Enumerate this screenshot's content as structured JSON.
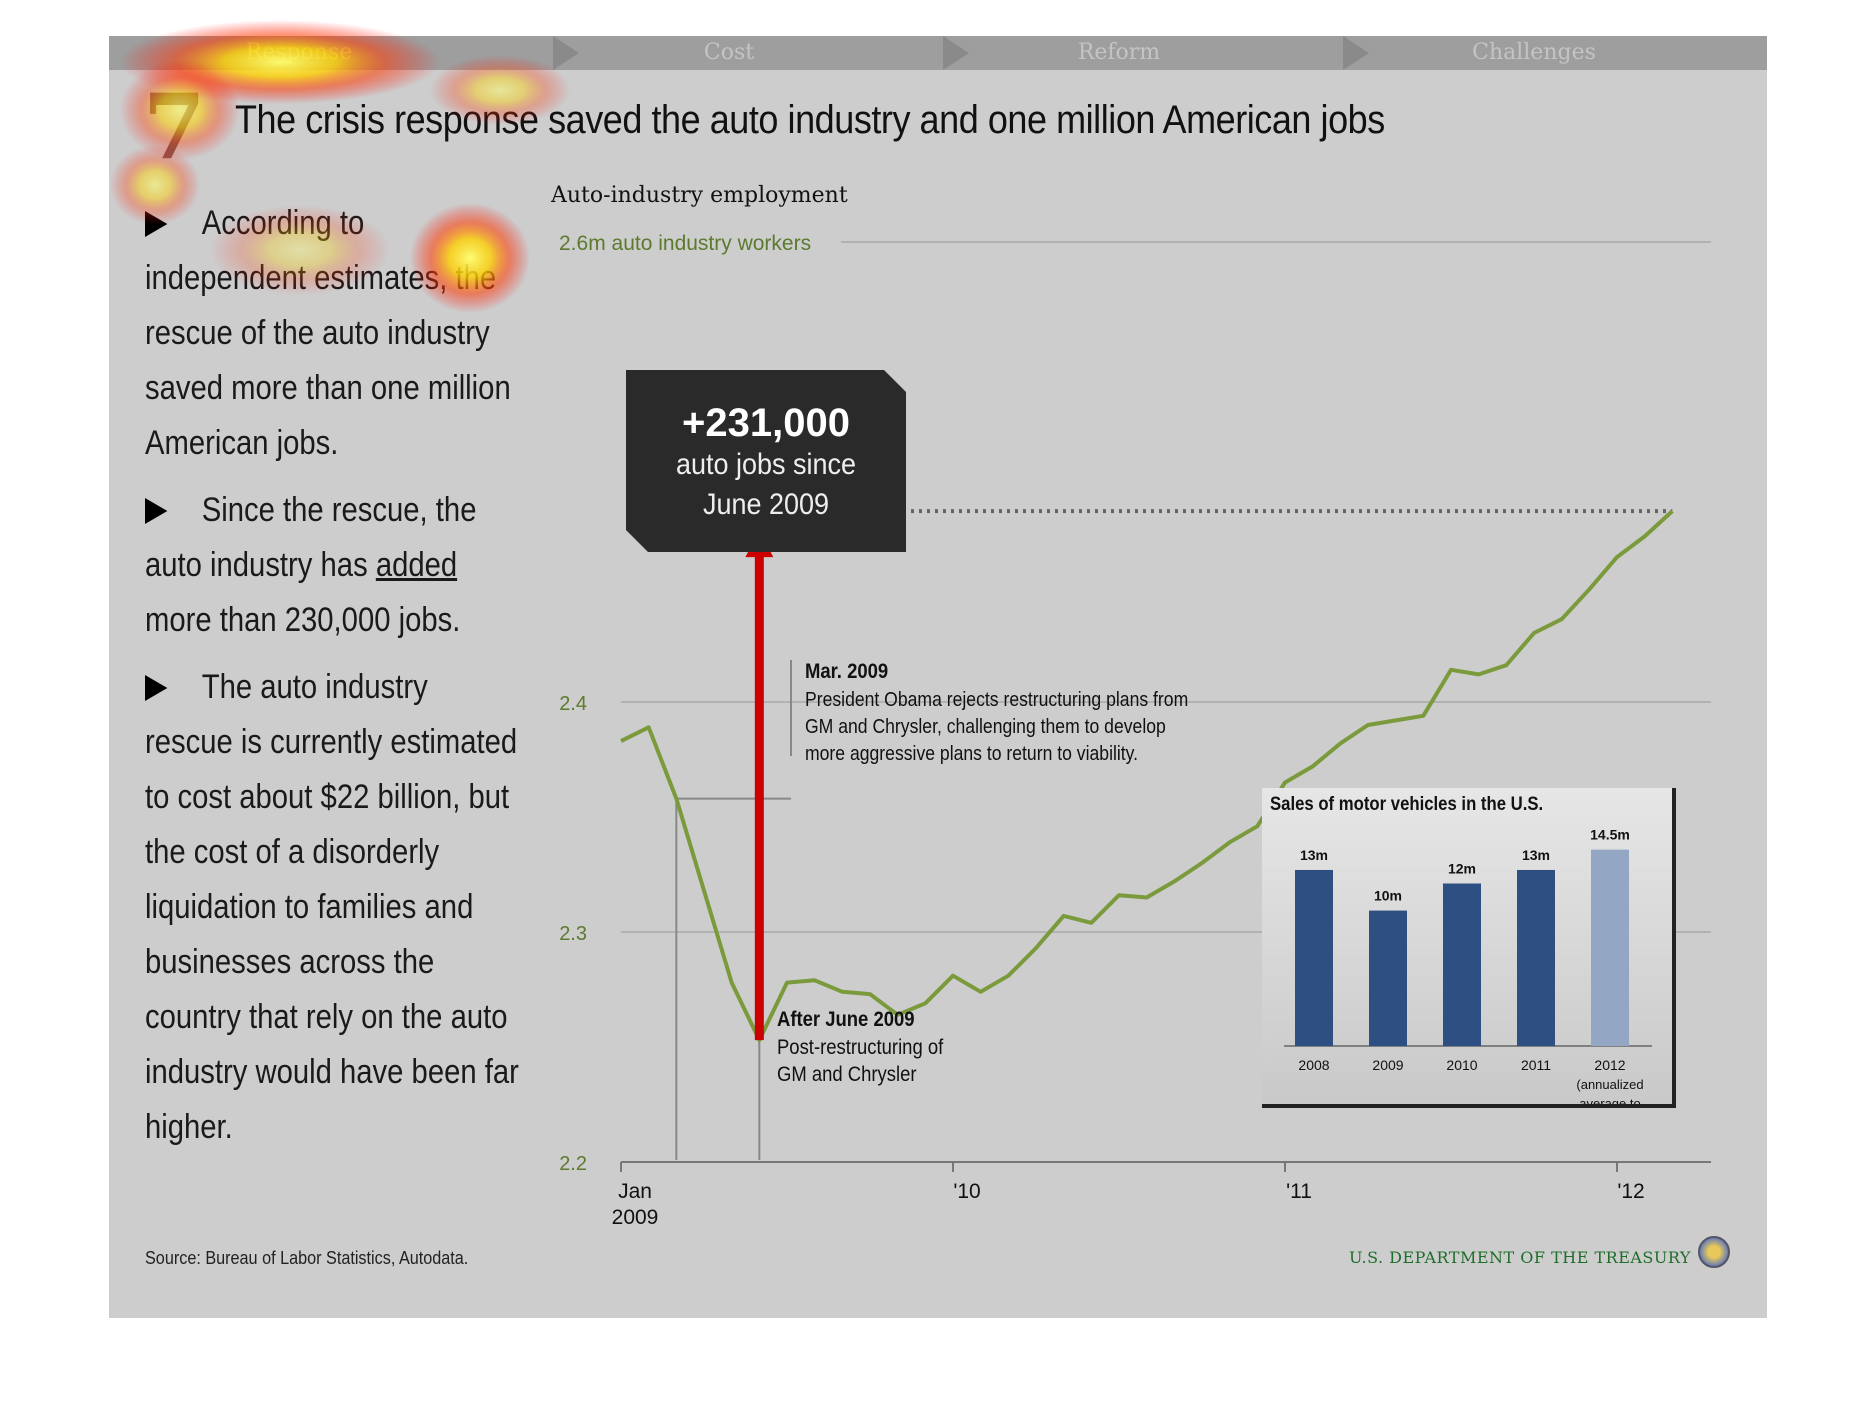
{
  "nav": {
    "tabs": [
      {
        "label": "Response",
        "active": true
      },
      {
        "label": "Cost",
        "active": false
      },
      {
        "label": "Reform",
        "active": false
      },
      {
        "label": "Challenges",
        "active": false
      }
    ]
  },
  "slide_number": "7",
  "headline": "The crisis response saved the auto industry and one million American jobs",
  "bullets": {
    "b1": "According to independent estimates, the rescue of the auto industry saved more than one million American jobs.",
    "b2_pre": "Since the rescue, the auto industry has ",
    "b2_under": "added",
    "b2_post": " more than 230,000 jobs.",
    "b3": "The auto industry rescue is currently estimated to cost about $22 billion, but the cost of a disorderly liquidation to families and businesses across the country that rely on the auto industry would have been far higher."
  },
  "source": "Source: Bureau of Labor Statistics, Autodata.",
  "footer_org": "U.S. DEPARTMENT OF THE TREASURY",
  "colors": {
    "line": "#7a9a3c",
    "arrow": "#cc0000",
    "callout": "#2a2a2a",
    "bar": "#2e4f82",
    "bar_2012": "#93a6c4",
    "axis_label": "#5c7a2e"
  },
  "chart_data": [
    {
      "type": "line",
      "title": "Auto-industry employment",
      "reference_line_label": "2.6m auto industry workers",
      "ylim": [
        2.2,
        2.6
      ],
      "yticks": [
        2.2,
        2.3,
        2.4
      ],
      "x_tick_labels": [
        {
          "value": "2009-01",
          "line1": "Jan",
          "line2": "2009"
        },
        {
          "value": "2010-01",
          "line1": "'10",
          "line2": ""
        },
        {
          "value": "2011-01",
          "line1": "'11",
          "line2": ""
        },
        {
          "value": "2012-01",
          "line1": "'12",
          "line2": ""
        }
      ],
      "x": [
        "2009-01",
        "2009-02",
        "2009-03",
        "2009-04",
        "2009-05",
        "2009-06",
        "2009-07",
        "2009-08",
        "2009-09",
        "2009-10",
        "2009-11",
        "2009-12",
        "2010-01",
        "2010-02",
        "2010-03",
        "2010-04",
        "2010-05",
        "2010-06",
        "2010-07",
        "2010-08",
        "2010-09",
        "2010-10",
        "2010-11",
        "2010-12",
        "2011-01",
        "2011-02",
        "2011-03",
        "2011-04",
        "2011-05",
        "2011-06",
        "2011-07",
        "2011-08",
        "2011-09",
        "2011-10",
        "2011-11",
        "2011-12",
        "2012-01",
        "2012-02",
        "2012-03"
      ],
      "values": [
        2.383,
        2.389,
        2.358,
        2.318,
        2.278,
        2.253,
        2.278,
        2.279,
        2.274,
        2.273,
        2.264,
        2.269,
        2.281,
        2.274,
        2.281,
        2.293,
        2.307,
        2.304,
        2.316,
        2.315,
        2.322,
        2.33,
        2.339,
        2.346,
        2.365,
        2.372,
        2.382,
        2.39,
        2.392,
        2.394,
        2.414,
        2.412,
        2.416,
        2.43,
        2.436,
        2.449,
        2.463,
        2.472,
        2.483
      ],
      "annotations": {
        "callout_big": "+231,000",
        "callout_line1": "auto jobs since",
        "callout_line2": "June 2009",
        "mar_title": "Mar. 2009",
        "mar_line1": "President Obama rejects restructuring plans from",
        "mar_line2": "GM and Chrysler, challenging them to develop",
        "mar_line3": "more aggressive plans to return to viability.",
        "june_title": "After June 2009",
        "june_line1": "Post-restructuring of",
        "june_line2": "GM and Chrysler"
      }
    },
    {
      "type": "bar",
      "title": "Sales of motor vehicles in the U.S.",
      "categories": [
        "2008",
        "2009",
        "2010",
        "2011",
        "2012"
      ],
      "category_sublabels": [
        "",
        "",
        "",
        "",
        "(annualized|average to|date)"
      ],
      "values": [
        13,
        10,
        12,
        13,
        14.5
      ],
      "value_labels": [
        "13m",
        "10m",
        "12m",
        "13m",
        "14.5m"
      ]
    }
  ]
}
